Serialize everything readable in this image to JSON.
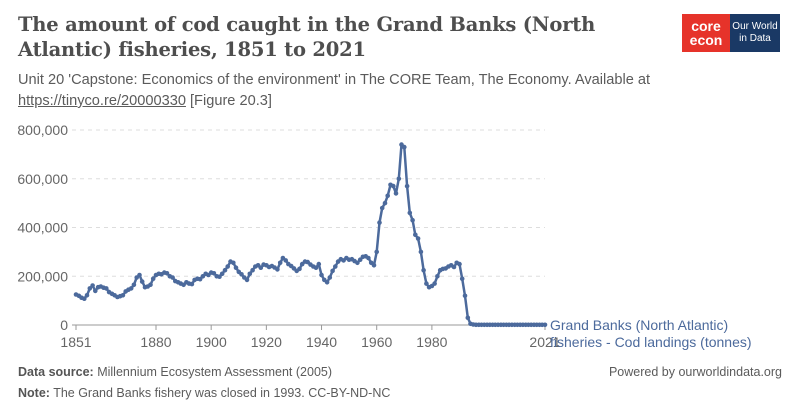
{
  "header": {
    "title": "The amount of cod caught in the Grand Banks (North Atlantic) fisheries, 1851 to 2021",
    "subtitle_text": "Unit 20 'Capstone: Economics of the environment' in The CORE Team, The Economy. Available at ",
    "subtitle_link": "https://tinyco.re/20000330",
    "subtitle_suffix": " [Figure 20.3]"
  },
  "logos": {
    "core_line1": "core",
    "core_line2": "econ",
    "owid_line1": "Our World",
    "owid_line2": "in Data",
    "core_color": "#e6332a",
    "owid_color": "#1a3965"
  },
  "footer": {
    "source_label": "Data source:",
    "source_text": " Millennium Ecosystem Assessment (2005)",
    "note_label": "Note:",
    "note_text": " The Grand Banks fishery was closed in 1993. CC-BY-ND-NC",
    "powered": "Powered by ourworldindata.org"
  },
  "chart_data": {
    "type": "line",
    "title": "The amount of cod caught in the Grand Banks (North Atlantic) fisheries, 1851 to 2021",
    "xlim": [
      1851,
      2021
    ],
    "ylim": [
      0,
      800000
    ],
    "x_ticks": [
      1851,
      1880,
      1900,
      1920,
      1940,
      1960,
      1980,
      2021
    ],
    "x_tick_labels": [
      "1851",
      "1880",
      "1900",
      "1920",
      "1940",
      "1960",
      "1980",
      "2021"
    ],
    "y_ticks": [
      0,
      200000,
      400000,
      600000,
      800000
    ],
    "y_tick_labels": [
      "0",
      "200,000",
      "400,000",
      "600,000",
      "800,000"
    ],
    "grid": "horizontal dashed",
    "legend": "inline label at line end",
    "series": [
      {
        "name": "Grand Banks (North Atlantic) fisheries - Cod landings (tonnes)",
        "color": "#4c6a9c",
        "x": [
          1851,
          1852,
          1853,
          1854,
          1855,
          1856,
          1857,
          1858,
          1859,
          1860,
          1861,
          1862,
          1863,
          1864,
          1865,
          1866,
          1867,
          1868,
          1869,
          1870,
          1871,
          1872,
          1873,
          1874,
          1875,
          1876,
          1877,
          1878,
          1879,
          1880,
          1881,
          1882,
          1883,
          1884,
          1885,
          1886,
          1887,
          1888,
          1889,
          1890,
          1891,
          1892,
          1893,
          1894,
          1895,
          1896,
          1897,
          1898,
          1899,
          1900,
          1901,
          1902,
          1903,
          1904,
          1905,
          1906,
          1907,
          1908,
          1909,
          1910,
          1911,
          1912,
          1913,
          1914,
          1915,
          1916,
          1917,
          1918,
          1919,
          1920,
          1921,
          1922,
          1923,
          1924,
          1925,
          1926,
          1927,
          1928,
          1929,
          1930,
          1931,
          1932,
          1933,
          1934,
          1935,
          1936,
          1937,
          1938,
          1939,
          1940,
          1941,
          1942,
          1943,
          1944,
          1945,
          1946,
          1947,
          1948,
          1949,
          1950,
          1951,
          1952,
          1953,
          1954,
          1955,
          1956,
          1957,
          1958,
          1959,
          1960,
          1961,
          1962,
          1963,
          1964,
          1965,
          1966,
          1967,
          1968,
          1969,
          1970,
          1971,
          1972,
          1973,
          1974,
          1975,
          1976,
          1977,
          1978,
          1979,
          1980,
          1981,
          1982,
          1983,
          1984,
          1985,
          1986,
          1987,
          1988,
          1989,
          1990,
          1991,
          1992,
          1993,
          1994,
          1995,
          1996,
          1997,
          1998,
          1999,
          2000,
          2001,
          2002,
          2003,
          2004,
          2005,
          2006,
          2007,
          2008,
          2009,
          2010,
          2011,
          2012,
          2013,
          2014,
          2015,
          2016,
          2017,
          2018,
          2019,
          2020,
          2021
        ],
        "values": [
          125000,
          120000,
          112000,
          108000,
          122000,
          150000,
          162000,
          140000,
          155000,
          158000,
          153000,
          150000,
          135000,
          128000,
          122000,
          115000,
          118000,
          122000,
          138000,
          145000,
          150000,
          165000,
          195000,
          205000,
          178000,
          155000,
          158000,
          165000,
          190000,
          205000,
          210000,
          208000,
          215000,
          212000,
          200000,
          195000,
          180000,
          175000,
          170000,
          165000,
          175000,
          170000,
          168000,
          185000,
          190000,
          188000,
          200000,
          210000,
          205000,
          215000,
          212000,
          200000,
          198000,
          210000,
          225000,
          240000,
          260000,
          255000,
          235000,
          218000,
          208000,
          195000,
          185000,
          210000,
          225000,
          240000,
          245000,
          235000,
          248000,
          245000,
          238000,
          242000,
          236000,
          228000,
          255000,
          275000,
          265000,
          250000,
          242000,
          232000,
          222000,
          230000,
          250000,
          260000,
          258000,
          248000,
          240000,
          235000,
          250000,
          205000,
          185000,
          175000,
          195000,
          222000,
          240000,
          260000,
          270000,
          265000,
          275000,
          268000,
          270000,
          262000,
          255000,
          268000,
          280000,
          282000,
          275000,
          255000,
          245000,
          300000,
          420000,
          480000,
          500000,
          530000,
          575000,
          570000,
          540000,
          600000,
          740000,
          730000,
          570000,
          460000,
          430000,
          370000,
          355000,
          300000,
          225000,
          170000,
          155000,
          160000,
          170000,
          200000,
          225000,
          230000,
          232000,
          240000,
          245000,
          238000,
          255000,
          250000,
          190000,
          120000,
          30000,
          5000,
          2000,
          1000,
          1000,
          1000,
          1000,
          1000,
          1000,
          1000,
          1000,
          1000,
          1000,
          1000,
          1000,
          1000,
          1000,
          1000,
          1000,
          1000,
          1000,
          1000,
          1000,
          1000,
          1000,
          1000,
          1000,
          1000,
          1000
        ]
      }
    ],
    "series_label_line1": "Grand Banks (North Atlantic)",
    "series_label_line2": "fisheries - Cod landings (tonnes)"
  }
}
